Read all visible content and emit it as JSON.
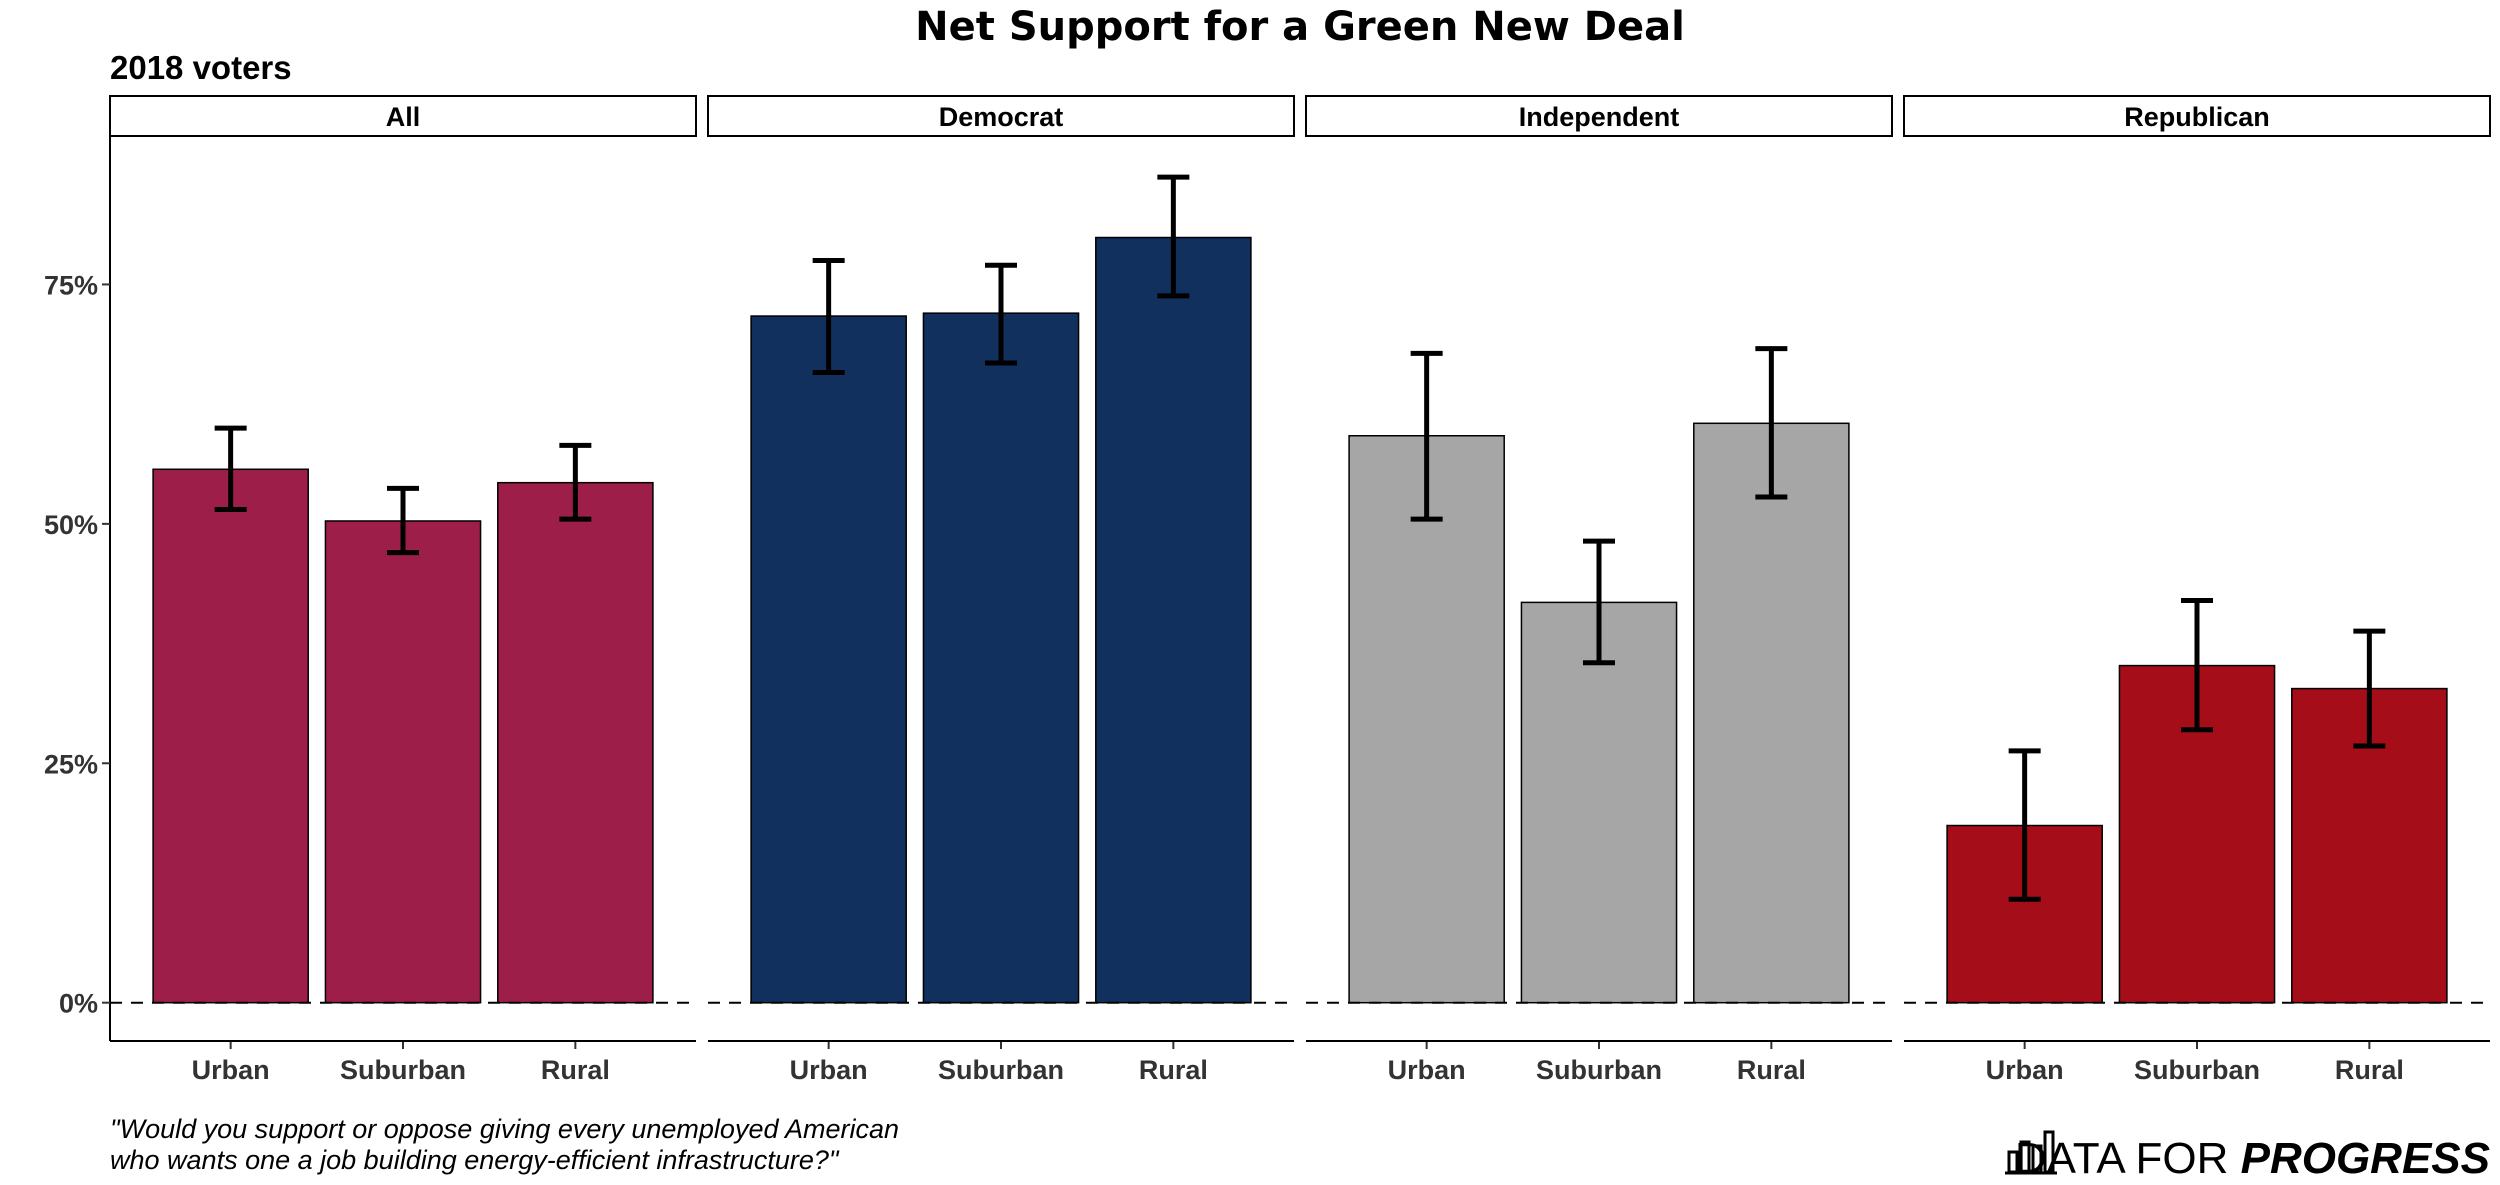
{
  "chart_data": {
    "type": "bar",
    "title": "Net Support for a Green New Deal",
    "subtitle": "2018 voters",
    "caption_lines": [
      "\"Would you support or oppose giving every unemployed American",
      "who wants one a job building energy-efficient infrastructure?\""
    ],
    "ylim": [
      -0.04,
      0.905
    ],
    "y_ticks": [
      0,
      0.25,
      0.5,
      0.75
    ],
    "y_tick_labels": [
      "0%",
      "25%",
      "50%",
      "75%"
    ],
    "categories": [
      "Urban",
      "Suburban",
      "Rural"
    ],
    "grid": false,
    "reference_line": 0,
    "panels": [
      {
        "name": "All",
        "color": "#9E1E4A",
        "values": [
          0.557,
          0.503,
          0.543
        ],
        "error_low": [
          0.515,
          0.47,
          0.505
        ],
        "error_high": [
          0.6,
          0.537,
          0.582
        ]
      },
      {
        "name": "Democrat",
        "color": "#12305E",
        "values": [
          0.717,
          0.72,
          0.799
        ],
        "error_low": [
          0.658,
          0.668,
          0.738
        ],
        "error_high": [
          0.775,
          0.77,
          0.862
        ]
      },
      {
        "name": "Independent",
        "color": "#A6A6A6",
        "values": [
          0.592,
          0.418,
          0.605
        ],
        "error_low": [
          0.505,
          0.355,
          0.528
        ],
        "error_high": [
          0.678,
          0.482,
          0.683
        ]
      },
      {
        "name": "Republican",
        "color": "#A50E18",
        "values": [
          0.185,
          0.352,
          0.328
        ],
        "error_low": [
          0.108,
          0.285,
          0.268
        ],
        "error_high": [
          0.263,
          0.42,
          0.388
        ]
      }
    ]
  },
  "logo": {
    "prefix": "DATA FOR ",
    "emphasis": "PROGRESS"
  }
}
